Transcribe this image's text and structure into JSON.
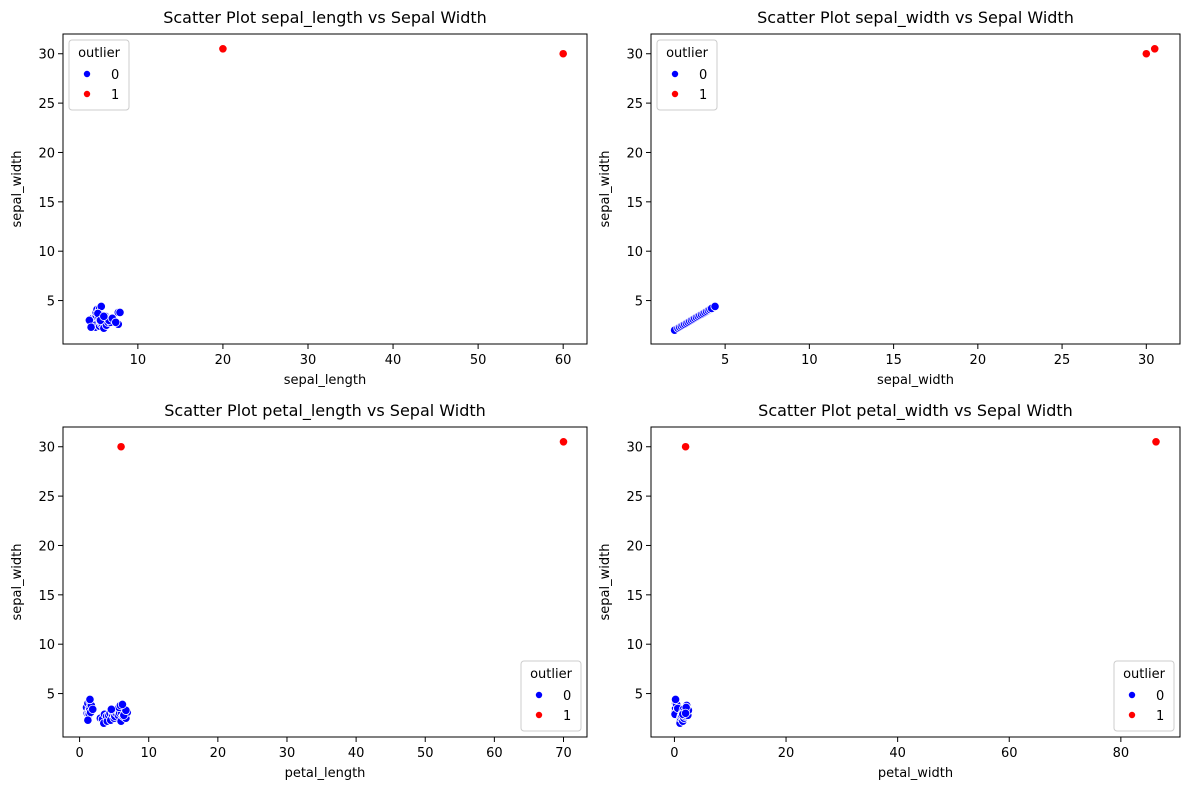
{
  "colors": {
    "outlier_0": "#0000ff",
    "outlier_1": "#ff0000",
    "marker_edge": "#ffffff"
  },
  "chart_data": [
    {
      "type": "scatter",
      "title": "Scatter Plot sepal_length vs Sepal Width",
      "xlabel": "sepal_length",
      "ylabel": "sepal_width",
      "xlim": [
        1.2,
        62.8
      ],
      "ylim": [
        0.6,
        32.0
      ],
      "xticks": [
        10,
        20,
        30,
        40,
        50,
        60
      ],
      "yticks": [
        5,
        10,
        15,
        20,
        25,
        30
      ],
      "legend": {
        "title": "outlier",
        "position": "upper left",
        "entries": [
          "0",
          "1"
        ]
      },
      "series": [
        {
          "name": "0",
          "color": "#0000ff",
          "points": [
            [
              4.4,
              2.9
            ],
            [
              4.6,
              3.1
            ],
            [
              4.7,
              3.2
            ],
            [
              4.8,
              3.0
            ],
            [
              4.9,
              2.5
            ],
            [
              5.0,
              3.4
            ],
            [
              5.0,
              2.3
            ],
            [
              5.1,
              3.5
            ],
            [
              5.1,
              3.8
            ],
            [
              5.2,
              4.1
            ],
            [
              5.4,
              3.9
            ],
            [
              5.4,
              3.4
            ],
            [
              5.5,
              4.2
            ],
            [
              5.5,
              2.4
            ],
            [
              5.6,
              2.8
            ],
            [
              5.7,
              2.6
            ],
            [
              5.7,
              4.4
            ],
            [
              5.8,
              2.7
            ],
            [
              5.9,
              3.0
            ],
            [
              6.0,
              2.2
            ],
            [
              6.1,
              2.9
            ],
            [
              6.2,
              3.4
            ],
            [
              6.3,
              2.5
            ],
            [
              6.4,
              3.2
            ],
            [
              6.5,
              2.8
            ],
            [
              6.7,
              3.1
            ],
            [
              6.8,
              2.8
            ],
            [
              6.9,
              3.1
            ],
            [
              7.2,
              3.0
            ],
            [
              7.7,
              2.6
            ],
            [
              7.7,
              3.8
            ],
            [
              4.3,
              3.0
            ],
            [
              4.5,
              2.3
            ],
            [
              5.3,
              3.7
            ],
            [
              6.6,
              3.0
            ],
            [
              7.0,
              3.2
            ],
            [
              7.4,
              2.8
            ],
            [
              7.9,
              3.8
            ],
            [
              5.6,
              3.0
            ],
            [
              6.0,
              3.4
            ]
          ]
        },
        {
          "name": "1",
          "color": "#ff0000",
          "points": [
            [
              20,
              30.5
            ],
            [
              60,
              30.0
            ]
          ]
        }
      ]
    },
    {
      "type": "scatter",
      "title": "Scatter Plot sepal_width vs Sepal Width",
      "xlabel": "sepal_width",
      "ylabel": "sepal_width",
      "xlim": [
        0.6,
        32.0
      ],
      "ylim": [
        0.6,
        32.0
      ],
      "xticks": [
        5,
        10,
        15,
        20,
        25,
        30
      ],
      "yticks": [
        5,
        10,
        15,
        20,
        25,
        30
      ],
      "legend": {
        "title": "outlier",
        "position": "upper left",
        "entries": [
          "0",
          "1"
        ]
      },
      "series": [
        {
          "name": "0",
          "color": "#0000ff",
          "points": [
            [
              2.0,
              2.0
            ],
            [
              2.2,
              2.2
            ],
            [
              2.3,
              2.3
            ],
            [
              2.4,
              2.4
            ],
            [
              2.5,
              2.5
            ],
            [
              2.6,
              2.6
            ],
            [
              2.7,
              2.7
            ],
            [
              2.8,
              2.8
            ],
            [
              2.9,
              2.9
            ],
            [
              3.0,
              3.0
            ],
            [
              3.1,
              3.1
            ],
            [
              3.2,
              3.2
            ],
            [
              3.3,
              3.3
            ],
            [
              3.4,
              3.4
            ],
            [
              3.5,
              3.5
            ],
            [
              3.6,
              3.6
            ],
            [
              3.7,
              3.7
            ],
            [
              3.8,
              3.8
            ],
            [
              3.9,
              3.9
            ],
            [
              4.0,
              4.0
            ],
            [
              4.1,
              4.1
            ],
            [
              4.2,
              4.2
            ],
            [
              4.4,
              4.4
            ]
          ]
        },
        {
          "name": "1",
          "color": "#ff0000",
          "points": [
            [
              30,
              30.0
            ],
            [
              30.5,
              30.5
            ]
          ]
        }
      ]
    },
    {
      "type": "scatter",
      "title": "Scatter Plot petal_length vs Sepal Width",
      "xlabel": "petal_length",
      "ylabel": "sepal_width",
      "xlim": [
        -2.4,
        73.4
      ],
      "ylim": [
        0.6,
        32.0
      ],
      "xticks": [
        0,
        10,
        20,
        30,
        40,
        50,
        60,
        70
      ],
      "yticks": [
        5,
        10,
        15,
        20,
        25,
        30
      ],
      "legend": {
        "title": "outlier",
        "position": "lower right",
        "entries": [
          "0",
          "1"
        ]
      },
      "series": [
        {
          "name": "0",
          "color": "#0000ff",
          "points": [
            [
              1.0,
              3.6
            ],
            [
              1.1,
              3.0
            ],
            [
              1.2,
              4.0
            ],
            [
              1.3,
              3.0
            ],
            [
              1.4,
              3.5
            ],
            [
              1.4,
              2.9
            ],
            [
              1.5,
              3.4
            ],
            [
              1.5,
              4.2
            ],
            [
              1.6,
              3.1
            ],
            [
              1.7,
              3.8
            ],
            [
              1.9,
              3.4
            ],
            [
              1.2,
              2.3
            ],
            [
              1.5,
              4.4
            ],
            [
              3.0,
              2.5
            ],
            [
              3.3,
              2.4
            ],
            [
              3.5,
              2.0
            ],
            [
              3.6,
              2.9
            ],
            [
              3.9,
              2.7
            ],
            [
              4.0,
              2.2
            ],
            [
              4.2,
              2.8
            ],
            [
              4.4,
              3.0
            ],
            [
              4.5,
              2.3
            ],
            [
              4.7,
              3.2
            ],
            [
              4.8,
              2.8
            ],
            [
              4.9,
              3.1
            ],
            [
              5.0,
              2.5
            ],
            [
              5.1,
              2.7
            ],
            [
              5.3,
              3.0
            ],
            [
              5.5,
              3.2
            ],
            [
              5.6,
              2.8
            ],
            [
              5.8,
              3.0
            ],
            [
              6.0,
              2.2
            ],
            [
              6.1,
              3.0
            ],
            [
              6.3,
              2.7
            ],
            [
              6.6,
              3.0
            ],
            [
              6.7,
              2.5
            ],
            [
              6.9,
              3.1
            ],
            [
              5.7,
              3.6
            ],
            [
              6.4,
              2.8
            ],
            [
              4.6,
              3.4
            ],
            [
              6.7,
              3.3
            ],
            [
              5.9,
              3.8
            ],
            [
              6.2,
              3.9
            ]
          ]
        },
        {
          "name": "1",
          "color": "#ff0000",
          "points": [
            [
              6.0,
              30.0
            ],
            [
              70,
              30.5
            ]
          ]
        }
      ]
    },
    {
      "type": "scatter",
      "title": "Scatter Plot petal_width vs Sepal Width",
      "xlabel": "petal_width",
      "ylabel": "sepal_width",
      "xlim": [
        -4.2,
        90.6
      ],
      "ylim": [
        0.6,
        32.0
      ],
      "xticks": [
        0,
        20,
        40,
        60,
        80
      ],
      "yticks": [
        5,
        10,
        15,
        20,
        25,
        30
      ],
      "legend": {
        "title": "outlier",
        "position": "lower right",
        "entries": [
          "0",
          "1"
        ]
      },
      "series": [
        {
          "name": "0",
          "color": "#0000ff",
          "points": [
            [
              0.1,
              3.1
            ],
            [
              0.2,
              3.5
            ],
            [
              0.2,
              4.0
            ],
            [
              0.3,
              3.0
            ],
            [
              0.4,
              3.9
            ],
            [
              0.2,
              4.4
            ],
            [
              0.5,
              3.3
            ],
            [
              0.1,
              2.9
            ],
            [
              0.6,
              3.5
            ],
            [
              1.0,
              2.3
            ],
            [
              1.0,
              2.0
            ],
            [
              1.1,
              2.5
            ],
            [
              1.2,
              2.7
            ],
            [
              1.3,
              2.8
            ],
            [
              1.4,
              3.0
            ],
            [
              1.5,
              2.2
            ],
            [
              1.6,
              3.4
            ],
            [
              1.7,
              2.5
            ],
            [
              1.8,
              3.0
            ],
            [
              1.9,
              2.7
            ],
            [
              2.0,
              2.8
            ],
            [
              2.1,
              3.1
            ],
            [
              2.2,
              3.8
            ],
            [
              2.3,
              3.2
            ],
            [
              2.4,
              2.8
            ],
            [
              2.5,
              3.3
            ],
            [
              1.8,
              3.2
            ],
            [
              2.1,
              3.6
            ],
            [
              1.5,
              2.9
            ],
            [
              2.0,
              3.0
            ]
          ]
        },
        {
          "name": "1",
          "color": "#ff0000",
          "points": [
            [
              2.0,
              30.0
            ],
            [
              86.3,
              30.5
            ]
          ]
        }
      ]
    }
  ]
}
